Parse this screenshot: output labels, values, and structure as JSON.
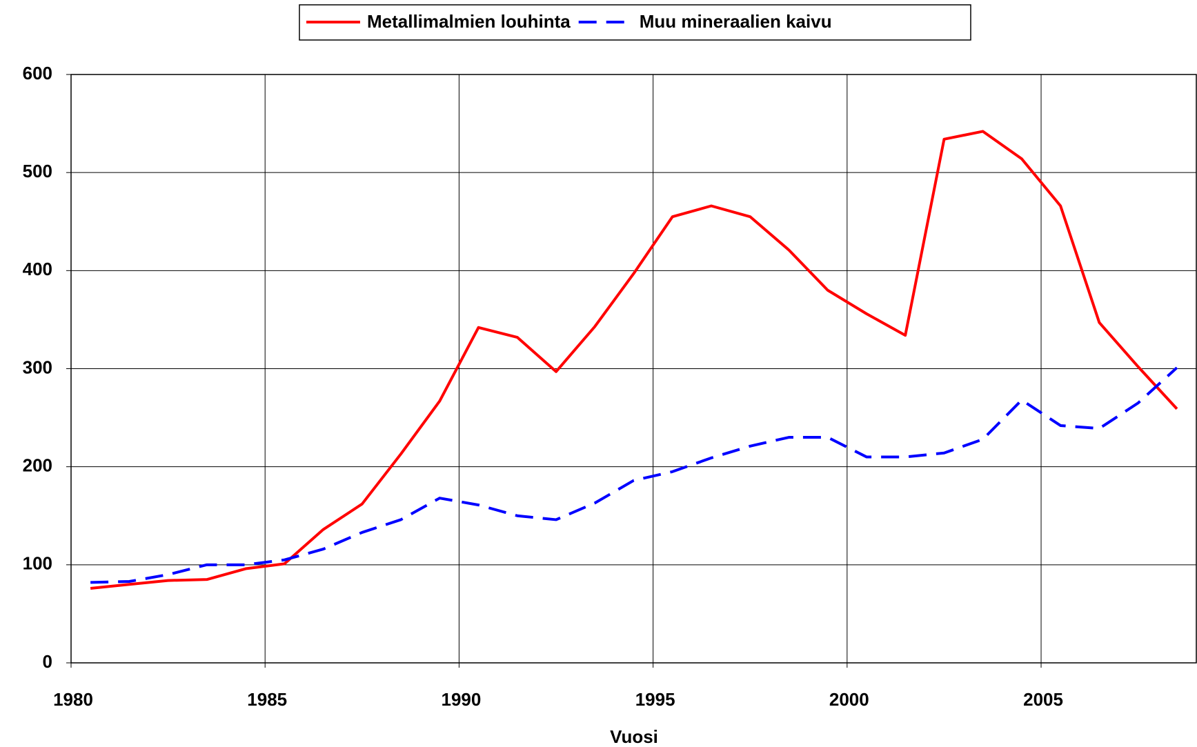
{
  "chart_data": {
    "type": "line",
    "x": [
      1980.5,
      1981.5,
      1982.5,
      1983.5,
      1984.5,
      1985.5,
      1986.5,
      1987.5,
      1988.5,
      1989.5,
      1990.5,
      1991.5,
      1992.5,
      1993.5,
      1994.5,
      1995.5,
      1996.5,
      1997.5,
      1998.5,
      1999.5,
      2000.5,
      2001.5,
      2002.5,
      2003.5,
      2004.5,
      2005.5,
      2006.5,
      2007.5,
      2008.5
    ],
    "series": [
      {
        "name": "Metallimalmien louhinta",
        "color": "#ff0000",
        "dash": false,
        "values": [
          76,
          80,
          84,
          85,
          96,
          101,
          136,
          162,
          213,
          267,
          342,
          332,
          297,
          343,
          397,
          455,
          466,
          455,
          421,
          380,
          356,
          334,
          534,
          542,
          514,
          466,
          347,
          302,
          259
        ]
      },
      {
        "name": "Muu mineraalien kaivu",
        "color": "#0000ff",
        "dash": true,
        "values": [
          82,
          83,
          90,
          100,
          100,
          105,
          116,
          133,
          146,
          168,
          161,
          150,
          146,
          163,
          186,
          195,
          209,
          221,
          230,
          230,
          210,
          210,
          214,
          228,
          268,
          242,
          239,
          265,
          301
        ]
      }
    ],
    "x_label": "Vuosi",
    "xlim": [
      1980,
      2009
    ],
    "xticks": [
      1980,
      1985,
      1990,
      1995,
      2000,
      2005
    ],
    "ylim": [
      0,
      600
    ],
    "yticks": [
      0,
      100,
      200,
      300,
      400,
      500,
      600
    ],
    "grid": true,
    "legend": "top"
  }
}
